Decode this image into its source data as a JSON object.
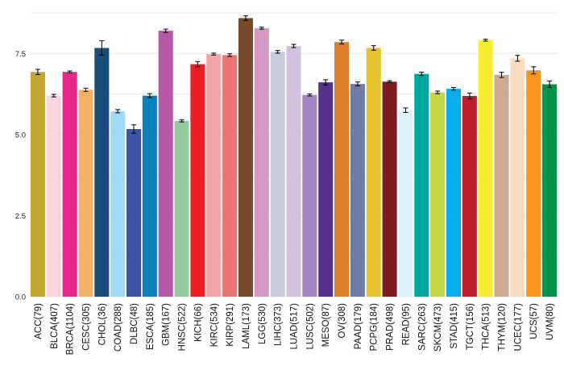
{
  "chart_data": {
    "type": "bar",
    "title": "",
    "xlabel": "",
    "ylabel": "",
    "ylim": [
      0,
      8.9
    ],
    "yticks": [
      "0.0",
      "2.5",
      "5.0",
      "7.5"
    ],
    "grid": true,
    "legend": "none",
    "categories": [
      "ACC(79)",
      "BLCA(407)",
      "BRCA(1104)",
      "CESC(305)",
      "CHOL(36)",
      "COAD(288)",
      "DLBC(48)",
      "ESCA(185)",
      "GBM(167)",
      "HNSC(522)",
      "KICH(66)",
      "KIRC(534)",
      "KIRP(291)",
      "LAML(173)",
      "LGG(530)",
      "LIHC(373)",
      "LUAD(517)",
      "LUSC(502)",
      "MESO(87)",
      "OV(308)",
      "PAAD(179)",
      "PCPG(184)",
      "PRAD(498)",
      "READ(95)",
      "SARC(263)",
      "SKCM(473)",
      "STAD(415)",
      "TGCT(156)",
      "THCA(513)",
      "THYM(120)",
      "UCEC(177)",
      "UCS(57)",
      "UVM(80)"
    ],
    "values": [
      6.93,
      6.2,
      6.93,
      6.38,
      7.67,
      5.72,
      5.17,
      6.2,
      8.2,
      5.42,
      7.17,
      7.48,
      7.45,
      8.59,
      8.28,
      7.55,
      7.73,
      6.22,
      6.61,
      7.85,
      6.56,
      7.67,
      6.63,
      5.75,
      6.87,
      6.3,
      6.41,
      6.19,
      7.91,
      6.84,
      7.35,
      6.98,
      6.55
    ],
    "errors": [
      0.08,
      0.04,
      0.03,
      0.05,
      0.22,
      0.05,
      0.13,
      0.06,
      0.05,
      0.03,
      0.08,
      0.03,
      0.04,
      0.07,
      0.03,
      0.04,
      0.05,
      0.03,
      0.08,
      0.06,
      0.06,
      0.07,
      0.03,
      0.07,
      0.05,
      0.04,
      0.04,
      0.09,
      0.03,
      0.08,
      0.09,
      0.11,
      0.1
    ],
    "colors": [
      "#C3A82F",
      "#FDD5DE",
      "#E7278D",
      "#F5B266",
      "#1A4C7A",
      "#9FDAF7",
      "#3C54A4",
      "#0C7FBE",
      "#B559A6",
      "#96CBA1",
      "#ED1D24",
      "#F3A5AA",
      "#E97474",
      "#784A2C",
      "#D598C3",
      "#C7CBDA",
      "#D4C0DF",
      "#A386BF",
      "#54318B",
      "#DC7E28",
      "#6E7CA5",
      "#E5C42D",
      "#7D1B21",
      "#DCF1F8",
      "#00A79E",
      "#C1D844",
      "#08AEEB",
      "#BE1E2E",
      "#F7EC2D",
      "#CEAB91",
      "#F9DCC1",
      "#F8951F",
      "#009448"
    ]
  }
}
